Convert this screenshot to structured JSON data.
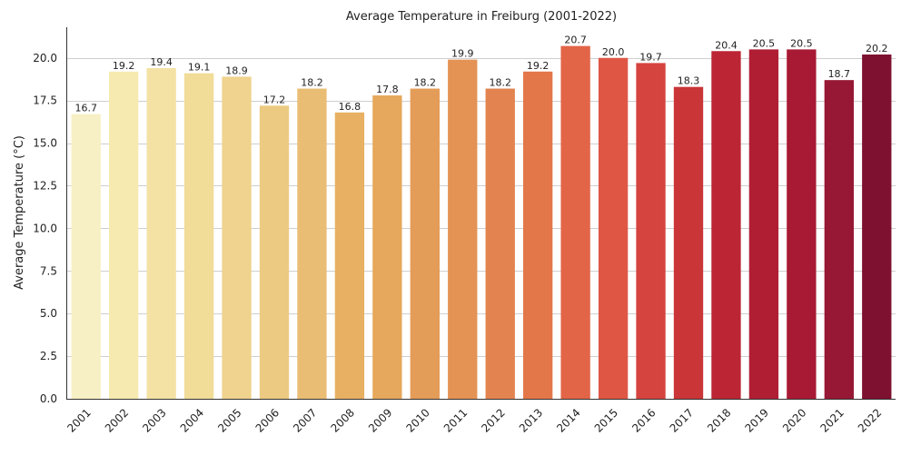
{
  "chart_data": {
    "type": "bar",
    "title": "Average Temperature in Freiburg (2001-2022)",
    "xlabel": "",
    "ylabel": "Average Temperature (°C)",
    "ylim": [
      0,
      21.8
    ],
    "yticks": [
      "0.0",
      "2.5",
      "5.0",
      "7.5",
      "10.0",
      "12.5",
      "15.0",
      "17.5",
      "20.0"
    ],
    "ytick_values": [
      0,
      2.5,
      5,
      7.5,
      10,
      12.5,
      15,
      17.5,
      20
    ],
    "grid": "horizontal",
    "categories": [
      "2001",
      "2002",
      "2003",
      "2004",
      "2005",
      "2006",
      "2007",
      "2008",
      "2009",
      "2010",
      "2011",
      "2012",
      "2013",
      "2014",
      "2015",
      "2016",
      "2017",
      "2018",
      "2019",
      "2020",
      "2021",
      "2022"
    ],
    "values": [
      16.7,
      19.2,
      19.4,
      19.1,
      18.9,
      17.2,
      18.2,
      16.8,
      17.8,
      18.2,
      19.9,
      18.2,
      19.2,
      20.7,
      20.0,
      19.7,
      18.3,
      20.4,
      20.5,
      20.5,
      18.7,
      20.2
    ],
    "data_labels": [
      "16.7",
      "19.2",
      "19.4",
      "19.1",
      "18.9",
      "17.2",
      "18.2",
      "16.8",
      "17.8",
      "18.2",
      "19.9",
      "18.2",
      "19.2",
      "20.7",
      "20.0",
      "19.7",
      "18.3",
      "20.4",
      "20.5",
      "20.5",
      "18.7",
      "20.2"
    ],
    "colors": [
      "#f7f0c4",
      "#f6eab0",
      "#f3e2a4",
      "#f1dc98",
      "#efd38e",
      "#ecca82",
      "#e9bd74",
      "#e8b062",
      "#e6a85c",
      "#e49c59",
      "#e49355",
      "#e38450",
      "#e3774a",
      "#e26547",
      "#df5645",
      "#d5443e",
      "#ca3538",
      "#bb2534",
      "#b01e34",
      "#a81a34",
      "#961834",
      "#7e1130"
    ]
  }
}
